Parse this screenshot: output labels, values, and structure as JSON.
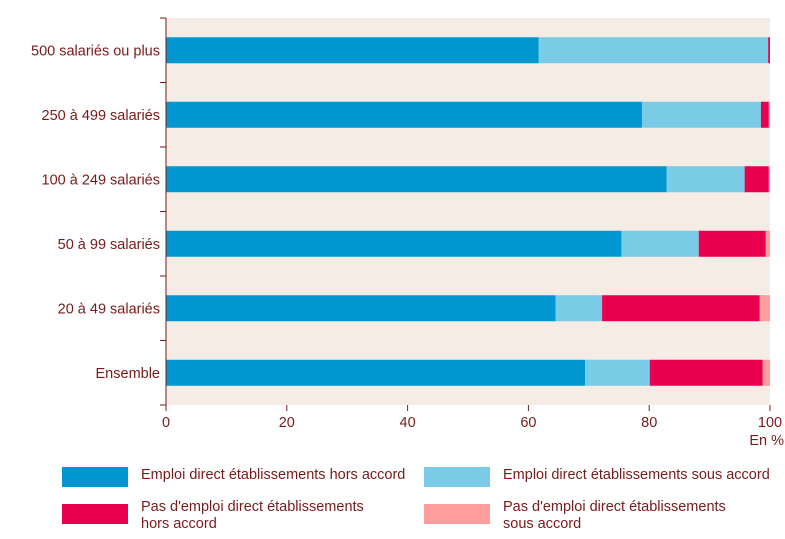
{
  "chart_data": {
    "type": "bar",
    "orientation": "horizontal",
    "stacked": true,
    "categories": [
      "500 salariés ou plus",
      "250 à 499 salariés",
      "100 à 249 salariés",
      "50 à 99 salariés",
      "20 à 49 salariés",
      "Ensemble"
    ],
    "series": [
      {
        "name": "Emploi direct établissements hors accord",
        "color": "#0096cf",
        "values": [
          61.7,
          78.8,
          82.9,
          75.4,
          64.5,
          69.4
        ]
      },
      {
        "name": "Emploi direct établissements sous accord",
        "color": "#7acbe6",
        "values": [
          38.0,
          19.7,
          12.9,
          12.8,
          7.7,
          10.7
        ]
      },
      {
        "name": "Pas d'emploi direct établissements hors accord",
        "color": "#e8004f",
        "values": [
          0.3,
          1.3,
          4.0,
          11.1,
          26.1,
          18.7
        ]
      },
      {
        "name": "Pas d'emploi direct établissements sous accord",
        "color": "#ff9c9c",
        "values": [
          0.0,
          0.2,
          0.2,
          0.7,
          1.7,
          1.2
        ]
      }
    ],
    "xlim": [
      0,
      100
    ],
    "xticks": [
      0,
      20,
      40,
      60,
      80,
      100
    ],
    "xlabel": "En %",
    "grid": false,
    "legend_position": "bottom",
    "plot_background": "#f6ece6",
    "text_color": "#7a1a1a"
  },
  "legend": {
    "items": [
      {
        "label": "Emploi direct établissements hors accord",
        "color": "#0096cf"
      },
      {
        "label": "Emploi direct établissements sous accord",
        "color": "#7acbe6"
      },
      {
        "label": "Pas d'emploi direct établissements\nhors accord",
        "color": "#e8004f"
      },
      {
        "label": "Pas d'emploi direct établissements\nsous accord",
        "color": "#ff9c9c"
      }
    ]
  }
}
